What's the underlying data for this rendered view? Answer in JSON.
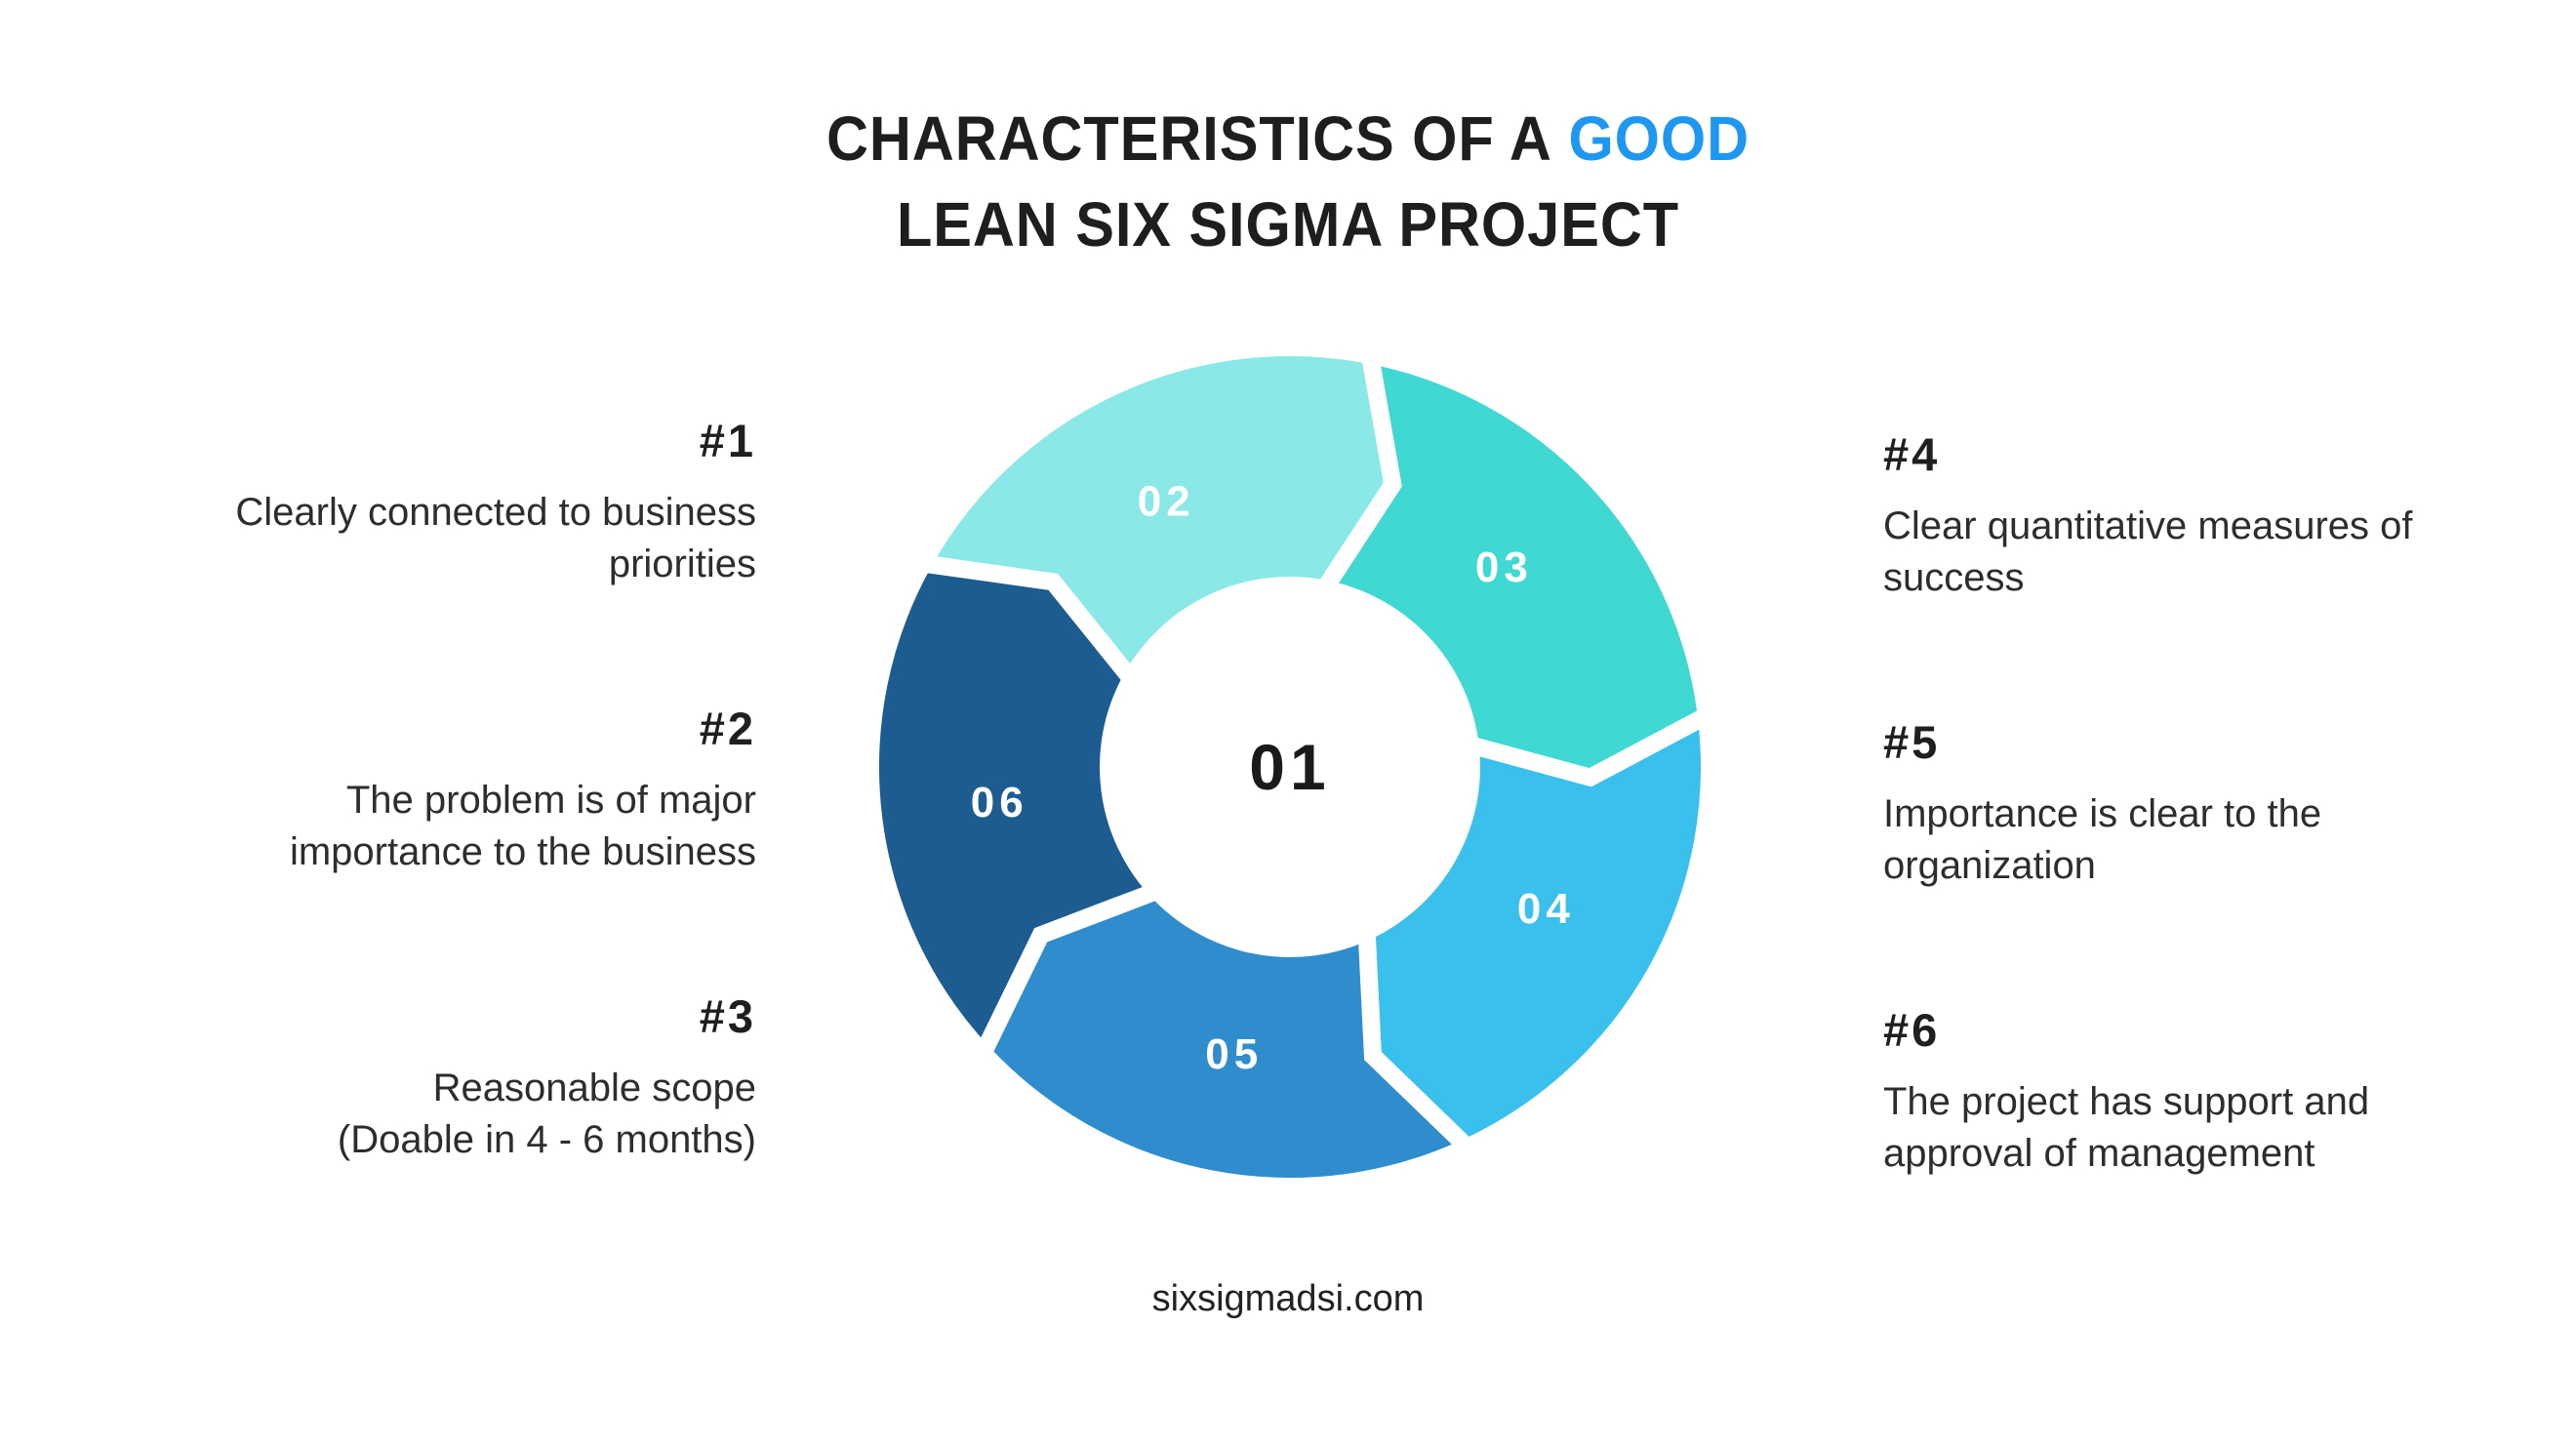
{
  "title": {
    "line1_black": "CHARACTERISTICS OF A",
    "line1_accent": "GOOD",
    "line2": "LEAN SIX SIGMA PROJECT",
    "accent_color": "#1e97f3"
  },
  "left_items": [
    {
      "number": "#1",
      "lines": [
        "Clearly connected to business",
        "priorities"
      ]
    },
    {
      "number": "#2",
      "lines": [
        "The problem is of major",
        "importance to the business"
      ]
    },
    {
      "number": "#3",
      "lines": [
        "Reasonable scope",
        "(Doable in 4 - 6 months)"
      ]
    }
  ],
  "right_items": [
    {
      "number": "#4",
      "lines": [
        "Clear quantitative measures of",
        "success"
      ]
    },
    {
      "number": "#5",
      "lines": [
        "Importance is clear to the",
        "organization"
      ]
    },
    {
      "number": "#6",
      "lines": [
        "The project has support and",
        "approval of management"
      ]
    }
  ],
  "diagram": {
    "center_label": "01",
    "gap_color": "#ffffff",
    "segments": [
      {
        "label": "02",
        "color": "#8ae9e7",
        "start": 209,
        "end": 281
      },
      {
        "label": "03",
        "color": "#3fd8d3",
        "start": 281,
        "end": 353
      },
      {
        "label": "04",
        "color": "#39c0ec",
        "start": 353,
        "end": 425
      },
      {
        "label": "05",
        "color": "#2f8ccd",
        "start": 65,
        "end": 137
      },
      {
        "label": "06",
        "color": "#1d5c90",
        "start": 137,
        "end": 209
      }
    ]
  },
  "footer": {
    "website": "sixsigmadsi.com"
  }
}
